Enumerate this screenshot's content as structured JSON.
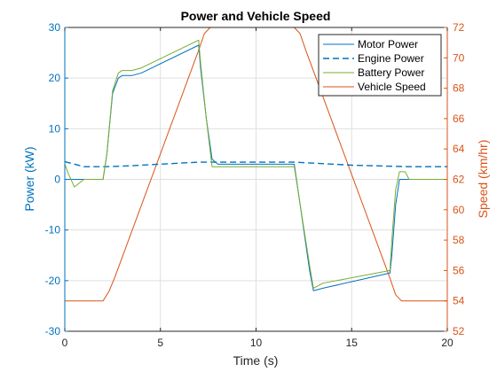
{
  "chart_data": {
    "type": "line",
    "title": "Power and Vehicle Speed",
    "xlabel": "Time (s)",
    "ylabel_left": "Power (kW)",
    "ylabel_right": "Speed (km/hr)",
    "xlim": [
      0,
      20
    ],
    "ylim_left": [
      -30,
      30
    ],
    "ylim_right": [
      52,
      72
    ],
    "x_ticks": [
      0,
      5,
      10,
      15,
      20
    ],
    "y_ticks_left": [
      -30,
      -20,
      -10,
      0,
      10,
      20,
      30
    ],
    "y_ticks_right": [
      52,
      54,
      56,
      58,
      60,
      62,
      64,
      66,
      68,
      70,
      72
    ],
    "grid": true,
    "legend_position": "top-right",
    "colors": {
      "left_axis": "#0072bd",
      "right_axis": "#d95319",
      "battery": "#77ac30",
      "grid": "#dfdfdf",
      "axes": "#262626"
    },
    "series": [
      {
        "name": "Motor Power",
        "axis": "left",
        "style": "solid",
        "color": "#0072bd",
        "x": [
          0,
          0.3,
          0.5,
          1.0,
          2.0,
          2.2,
          2.5,
          2.8,
          3.0,
          3.5,
          4.0,
          7.0,
          7.1,
          7.4,
          7.7,
          8.0,
          12.0,
          12.8,
          13.0,
          13.5,
          17.0,
          17.1,
          17.3,
          17.5,
          17.8,
          20.0
        ],
        "y": [
          0,
          0,
          0,
          0,
          0,
          5,
          17,
          20,
          20.5,
          20.5,
          21,
          26.5,
          22,
          12,
          4,
          3,
          3,
          -18,
          -22,
          -21.5,
          -18.5,
          -15,
          -5,
          0,
          0,
          0
        ]
      },
      {
        "name": "Engine Power",
        "axis": "left",
        "style": "dashed",
        "color": "#0072bd",
        "x": [
          0,
          1,
          2,
          3,
          4,
          5,
          6,
          7,
          8,
          9,
          10,
          11,
          12,
          13,
          14,
          15,
          16,
          17,
          18,
          19,
          20
        ],
        "y": [
          3.5,
          2.5,
          2.5,
          2.6,
          2.8,
          3.0,
          3.2,
          3.4,
          3.4,
          3.4,
          3.4,
          3.4,
          3.4,
          3.2,
          3.0,
          2.8,
          2.7,
          2.6,
          2.5,
          2.5,
          2.5
        ]
      },
      {
        "name": "Battery Power",
        "axis": "left",
        "style": "solid",
        "color": "#77ac30",
        "x": [
          0,
          0.2,
          0.5,
          1.0,
          2.0,
          2.2,
          2.5,
          2.8,
          3.0,
          3.5,
          4.0,
          7.0,
          7.1,
          7.4,
          7.7,
          8.0,
          12.0,
          12.8,
          13.0,
          13.5,
          17.0,
          17.1,
          17.3,
          17.5,
          17.8,
          18.0,
          20.0
        ],
        "y": [
          3.0,
          1.0,
          -1.5,
          0,
          0,
          5,
          17.5,
          21,
          21.5,
          21.5,
          22,
          27.5,
          23,
          12,
          2.5,
          2.5,
          2.5,
          -17,
          -21.5,
          -20.5,
          -18,
          -12,
          -2,
          1.5,
          1.5,
          0,
          0
        ]
      },
      {
        "name": "Vehicle Speed",
        "axis": "right",
        "style": "solid",
        "color": "#d95319",
        "x": [
          0,
          2.0,
          2.3,
          2.6,
          7.0,
          7.3,
          7.6,
          12.0,
          12.3,
          12.6,
          17.0,
          17.3,
          17.6,
          20.0
        ],
        "y": [
          54,
          54,
          54.6,
          55.5,
          70.5,
          71.6,
          72,
          72,
          71.6,
          70.5,
          55.5,
          54.4,
          54,
          54
        ]
      }
    ]
  }
}
